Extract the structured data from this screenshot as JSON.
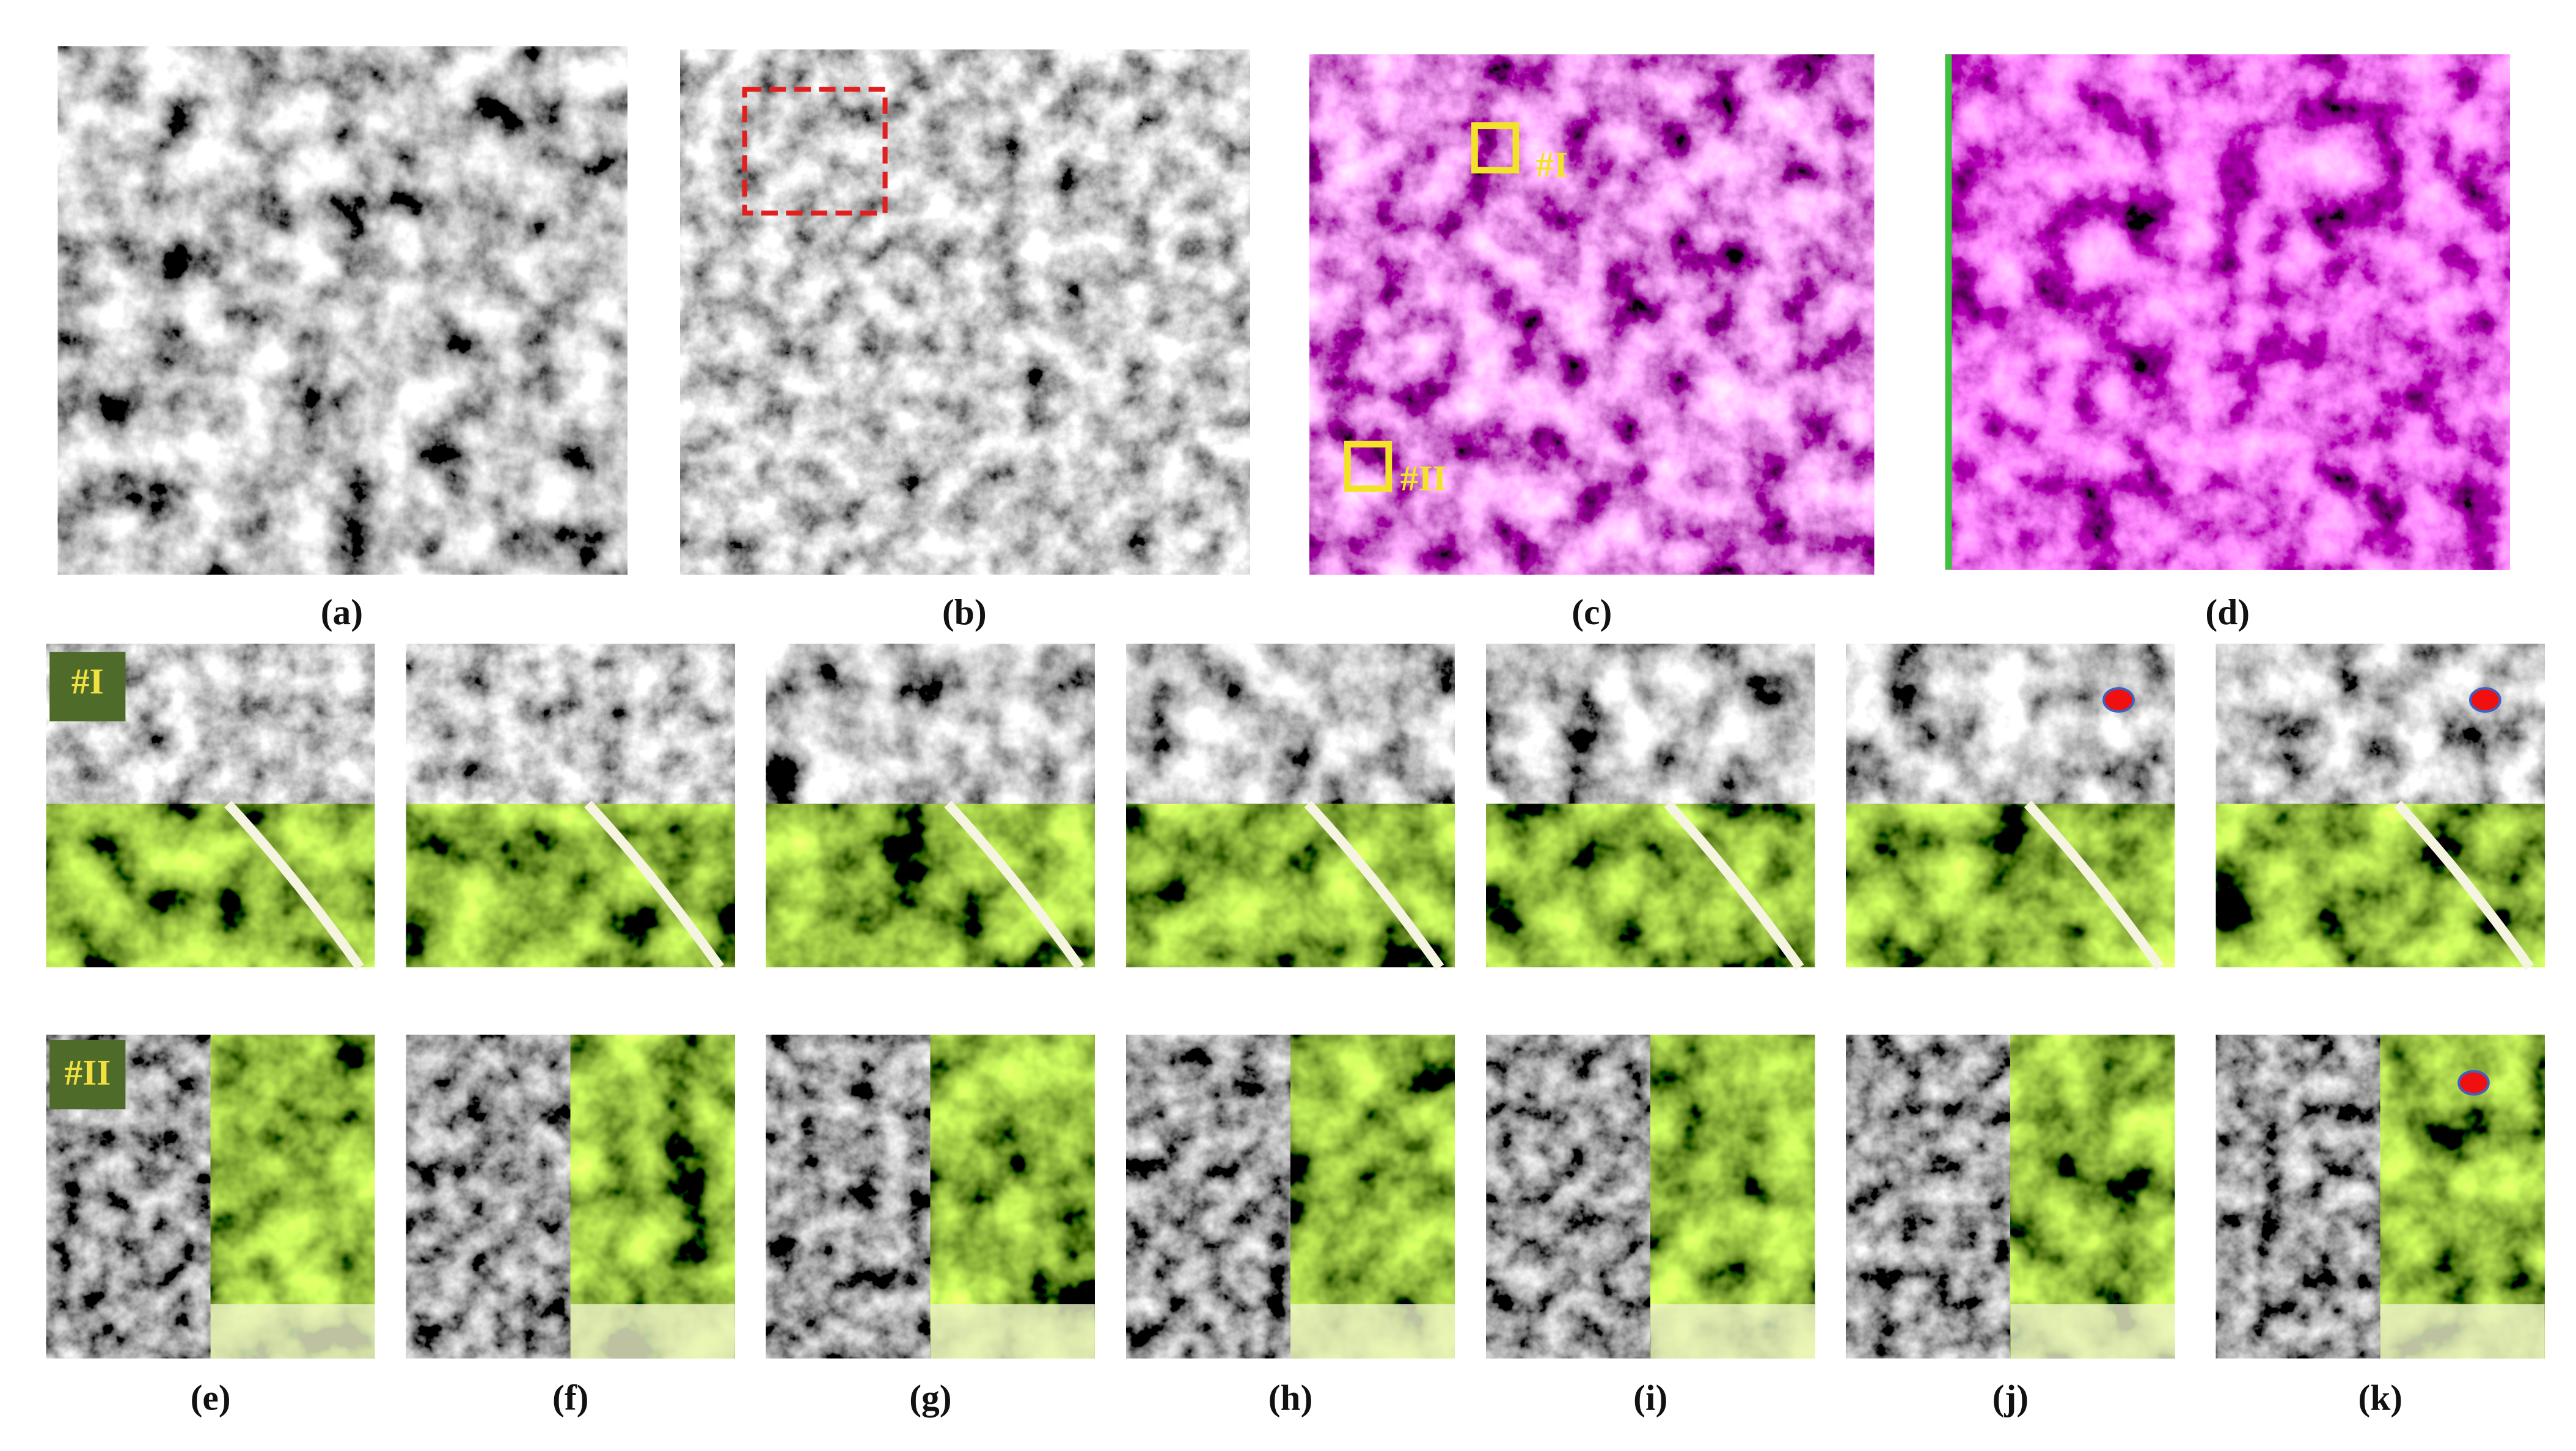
{
  "top_labels": [
    "(a)",
    "(b)",
    "(c)",
    "(d)"
  ],
  "bottom_labels": [
    "(e)",
    "(f)",
    "(g)",
    "(h)",
    "(i)",
    "(j)",
    "(k)"
  ],
  "row_labels": [
    "#I",
    "#II"
  ],
  "box_labels": [
    "#I",
    "#II"
  ]
}
